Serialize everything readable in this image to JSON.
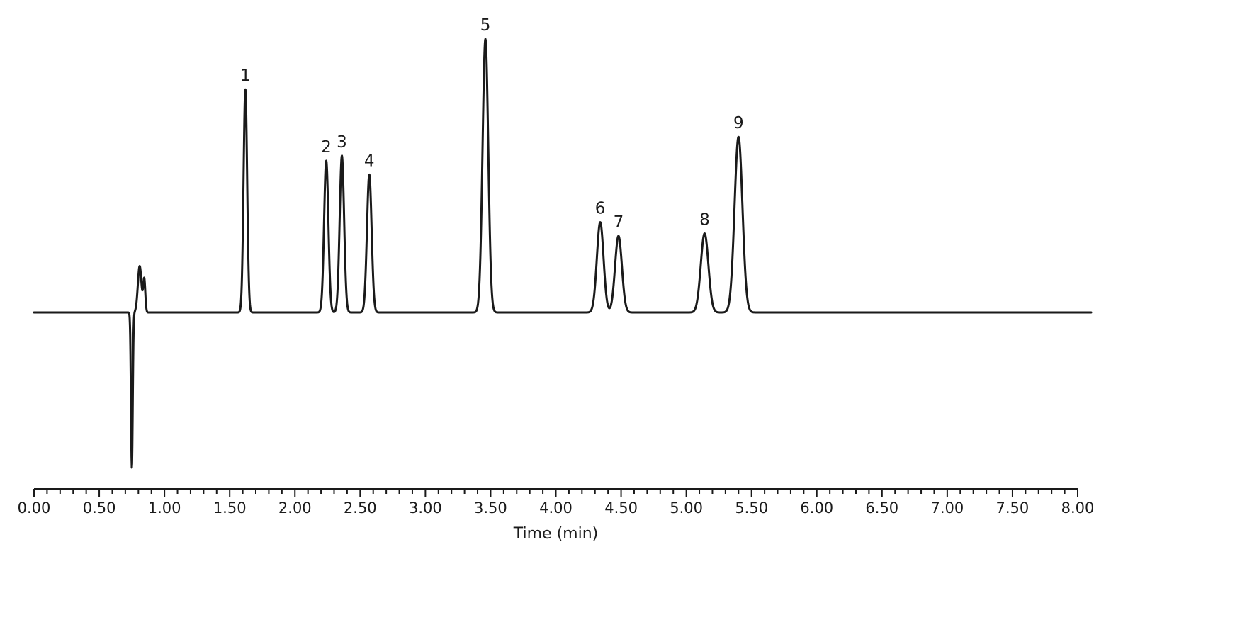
{
  "chart_data": {
    "type": "line",
    "title": "",
    "xlabel": "Time (min)",
    "ylabel": "",
    "xlim": [
      0,
      8
    ],
    "ylim": [
      -1.25,
      2.2
    ],
    "x_ticks": [
      "0.00",
      "0.50",
      "1.00",
      "1.50",
      "2.00",
      "2.50",
      "3.00",
      "3.50",
      "4.00",
      "4.50",
      "5.00",
      "5.50",
      "6.00",
      "6.50",
      "7.00",
      "7.50",
      "8.00"
    ],
    "minor_tick_step": 0.1,
    "grid": false,
    "baseline": 0,
    "series": [
      {
        "peaks": [
          {
            "label": "1",
            "rt": 1.62,
            "height": 1.78
          },
          {
            "label": "2",
            "rt": 2.24,
            "height": 1.21
          },
          {
            "label": "3",
            "rt": 2.36,
            "height": 1.25
          },
          {
            "label": "4",
            "rt": 2.57,
            "height": 1.1
          },
          {
            "label": "5",
            "rt": 3.46,
            "height": 2.18
          },
          {
            "label": "6",
            "rt": 4.34,
            "height": 0.72
          },
          {
            "label": "7",
            "rt": 4.48,
            "height": 0.61
          },
          {
            "label": "8",
            "rt": 5.14,
            "height": 0.63
          },
          {
            "label": "9",
            "rt": 5.4,
            "height": 1.4
          }
        ],
        "system_peak": {
          "rt": 0.75,
          "min": -1.24,
          "hump_height": 0.37
        }
      }
    ]
  }
}
